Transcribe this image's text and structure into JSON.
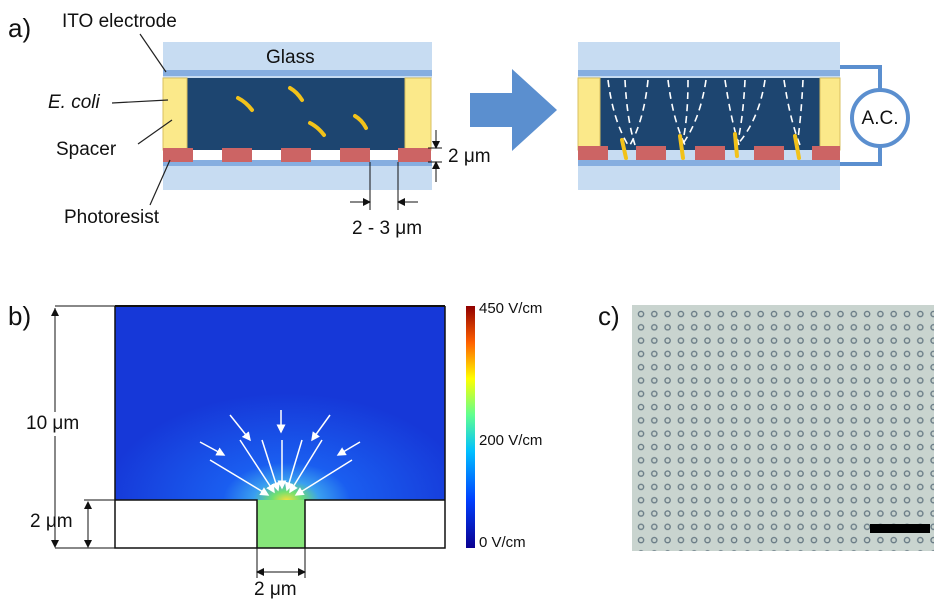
{
  "panel_a": {
    "label": "a)",
    "ito_electrode": "ITO electrode",
    "glass": "Glass",
    "e_coli": "E. coli",
    "spacer": "Spacer",
    "photoresist": "Photoresist",
    "pillar_height": "2 μm",
    "pillar_spacing": "2 - 3 μm",
    "ac": "A.C."
  },
  "panel_b": {
    "label": "b)",
    "total_height": "10 μm",
    "step_height": "2 μm",
    "slot_width": "2 μm",
    "colorbar_labels": [
      "450 V/cm",
      "200 V/cm",
      "0 V/cm"
    ]
  },
  "panel_c": {
    "label": "c)"
  }
}
